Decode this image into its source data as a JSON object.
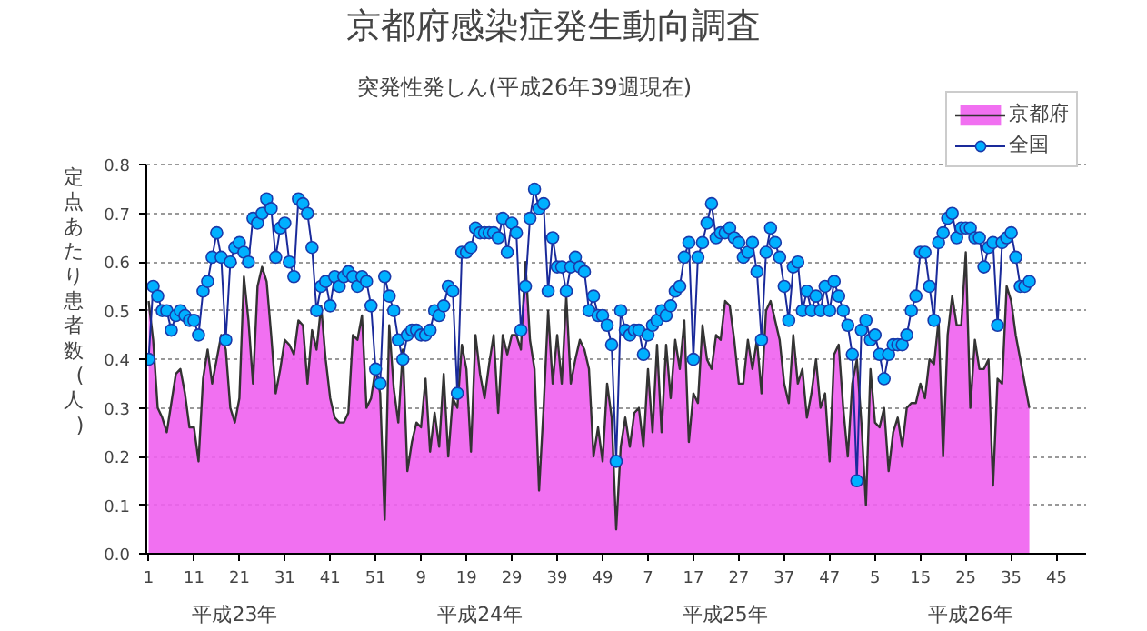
{
  "chart_data": {
    "type": "area",
    "title": "京都府感染症発生動向調査",
    "subtitle": "突発性発しん(平成26年39週現在)",
    "ylabel": "定点あたり患者数(人)",
    "categories": [
      "1",
      null,
      null,
      null,
      null,
      null,
      null,
      null,
      null,
      null,
      "11",
      null,
      null,
      null,
      null,
      null,
      null,
      null,
      null,
      null,
      "21",
      null,
      null,
      null,
      null,
      null,
      null,
      null,
      null,
      null,
      "31",
      null,
      null,
      null,
      null,
      null,
      null,
      null,
      null,
      null,
      "41",
      null,
      null,
      null,
      null,
      null,
      null,
      null,
      null,
      null,
      "51",
      null,
      null,
      null,
      null,
      null,
      null,
      null,
      null,
      null,
      "9",
      null,
      null,
      null,
      null,
      null,
      null,
      null,
      null,
      null,
      "19",
      null,
      null,
      null,
      null,
      null,
      null,
      null,
      null,
      null,
      "29",
      null,
      null,
      null,
      null,
      null,
      null,
      null,
      null,
      null,
      "39",
      null,
      null,
      null,
      null,
      null,
      null,
      null,
      null,
      null,
      "49",
      null,
      null,
      null,
      null,
      null,
      null,
      null,
      null,
      null,
      "7",
      null,
      null,
      null,
      null,
      null,
      null,
      null,
      null,
      null,
      "17",
      null,
      null,
      null,
      null,
      null,
      null,
      null,
      null,
      null,
      "27",
      null,
      null,
      null,
      null,
      null,
      null,
      null,
      null,
      null,
      "37",
      null,
      null,
      null,
      null,
      null,
      null,
      null,
      null,
      null,
      "47",
      null,
      null,
      null,
      null,
      null,
      null,
      null,
      null,
      null,
      "5",
      null,
      null,
      null,
      null,
      null,
      null,
      null,
      null,
      null,
      "15",
      null,
      null,
      null,
      null,
      null,
      null,
      null,
      null,
      null,
      "25",
      null,
      null,
      null,
      null,
      null,
      null,
      null,
      null,
      null,
      "35",
      null,
      null,
      null,
      null,
      null,
      null,
      null,
      null,
      null,
      "45",
      null,
      null,
      null,
      null,
      null,
      null
    ],
    "series": [
      {
        "name": "京都府",
        "color": "#f060f0",
        "values": [
          0.52,
          0.44,
          0.3,
          0.28,
          0.25,
          0.31,
          0.37,
          0.38,
          0.33,
          0.26,
          0.26,
          0.19,
          0.36,
          0.42,
          0.35,
          0.4,
          0.45,
          0.42,
          0.3,
          0.27,
          0.32,
          0.57,
          0.48,
          0.35,
          0.55,
          0.59,
          0.56,
          0.45,
          0.33,
          0.38,
          0.44,
          0.43,
          0.41,
          0.48,
          0.47,
          0.35,
          0.46,
          0.42,
          0.51,
          0.4,
          0.32,
          0.28,
          0.27,
          0.27,
          0.29,
          0.45,
          0.44,
          0.49,
          0.3,
          0.32,
          0.38,
          0.33,
          0.07,
          0.47,
          0.34,
          0.27,
          0.42,
          0.17,
          0.23,
          0.27,
          0.26,
          0.36,
          0.21,
          0.29,
          0.22,
          0.37,
          0.2,
          0.32,
          0.3,
          0.43,
          0.38,
          0.21,
          0.45,
          0.37,
          0.32,
          0.39,
          0.45,
          0.29,
          0.45,
          0.41,
          0.45,
          0.45,
          0.42,
          0.6,
          0.44,
          0.38,
          0.13,
          0.3,
          0.5,
          0.35,
          0.45,
          0.35,
          0.53,
          0.35,
          0.4,
          0.44,
          0.42,
          0.38,
          0.2,
          0.26,
          0.19,
          0.35,
          0.28,
          0.05,
          0.22,
          0.28,
          0.22,
          0.29,
          0.3,
          0.22,
          0.38,
          0.25,
          0.43,
          0.25,
          0.43,
          0.32,
          0.44,
          0.38,
          0.48,
          0.23,
          0.33,
          0.31,
          0.47,
          0.4,
          0.38,
          0.45,
          0.44,
          0.52,
          0.51,
          0.44,
          0.35,
          0.35,
          0.44,
          0.38,
          0.44,
          0.33,
          0.5,
          0.52,
          0.48,
          0.44,
          0.35,
          0.31,
          0.45,
          0.35,
          0.38,
          0.28,
          0.33,
          0.4,
          0.3,
          0.33,
          0.19,
          0.41,
          0.43,
          0.3,
          0.2,
          0.35,
          0.4,
          0.27,
          0.1,
          0.38,
          0.27,
          0.26,
          0.3,
          0.17,
          0.25,
          0.28,
          0.22,
          0.3,
          0.31,
          0.31,
          0.35,
          0.32,
          0.4,
          0.39,
          0.48,
          0.2,
          0.45,
          0.53,
          0.47,
          0.47,
          0.62,
          0.3,
          0.44,
          0.38,
          0.38,
          0.4,
          0.14,
          0.36,
          0.35,
          0.55,
          0.52,
          0.45,
          0.4,
          0.35,
          0.3,
          null,
          null,
          null,
          null,
          null,
          null,
          null,
          null,
          null,
          null,
          null,
          null
        ]
      },
      {
        "name": "全国",
        "type": "line",
        "color": "#00b0ff",
        "marker": "circle",
        "values": [
          0.4,
          0.55,
          0.53,
          0.5,
          0.5,
          0.46,
          0.49,
          0.5,
          0.49,
          0.48,
          0.48,
          0.45,
          0.54,
          0.56,
          0.61,
          0.66,
          0.61,
          0.44,
          0.6,
          0.63,
          0.64,
          0.62,
          0.6,
          0.69,
          0.68,
          0.7,
          0.73,
          0.71,
          0.61,
          0.67,
          0.68,
          0.6,
          0.57,
          0.73,
          0.72,
          0.7,
          0.63,
          0.5,
          0.55,
          0.56,
          0.51,
          0.57,
          0.55,
          0.57,
          0.58,
          0.57,
          0.55,
          0.57,
          0.56,
          0.51,
          0.38,
          0.35,
          0.57,
          0.53,
          0.5,
          0.44,
          0.4,
          0.45,
          0.46,
          0.46,
          0.45,
          0.45,
          0.46,
          0.5,
          0.49,
          0.51,
          0.55,
          0.54,
          0.33,
          0.62,
          0.62,
          0.63,
          0.67,
          0.66,
          0.66,
          0.66,
          0.66,
          0.65,
          0.69,
          0.62,
          0.68,
          0.66,
          0.46,
          0.55,
          0.69,
          0.75,
          0.71,
          0.72,
          0.54,
          0.65,
          0.59,
          0.59,
          0.54,
          0.59,
          0.61,
          0.59,
          0.58,
          0.5,
          0.53,
          0.49,
          0.49,
          0.47,
          0.43,
          0.19,
          0.5,
          0.46,
          0.45,
          0.46,
          0.46,
          0.41,
          0.45,
          0.47,
          0.48,
          0.5,
          0.49,
          0.51,
          0.54,
          0.55,
          0.61,
          0.64,
          0.4,
          0.61,
          0.64,
          0.68,
          0.72,
          0.65,
          0.66,
          0.66,
          0.67,
          0.65,
          0.64,
          0.61,
          0.62,
          0.64,
          0.58,
          0.44,
          0.62,
          0.67,
          0.64,
          0.61,
          0.55,
          0.48,
          0.59,
          0.6,
          0.5,
          0.54,
          0.5,
          0.53,
          0.5,
          0.55,
          0.5,
          0.56,
          0.53,
          0.5,
          0.47,
          0.41,
          0.15,
          0.46,
          0.48,
          0.44,
          0.45,
          0.41,
          0.36,
          0.41,
          0.43,
          0.43,
          0.43,
          0.45,
          0.5,
          0.53,
          0.62,
          0.62,
          0.55,
          0.48,
          0.64,
          0.66,
          0.69,
          0.7,
          0.65,
          0.67,
          0.67,
          0.67,
          0.65,
          0.65,
          0.59,
          0.63,
          0.64,
          0.47,
          0.64,
          0.65,
          0.66,
          0.61,
          0.55,
          0.55,
          0.56,
          null,
          null,
          null,
          null,
          null,
          null,
          null,
          null,
          null,
          null,
          null,
          null
        ]
      }
    ],
    "ylim": [
      0,
      0.8
    ],
    "yticks": [
      {
        "value": 0,
        "label": "0.0"
      },
      0.1,
      0.2,
      0.3,
      0.4,
      0.5,
      0.6,
      0.7,
      0.8
    ],
    "annotations": [
      "平成23年",
      "平成24年",
      "平成25年",
      "平成26年"
    ],
    "grid": "y",
    "legend": "top right"
  }
}
